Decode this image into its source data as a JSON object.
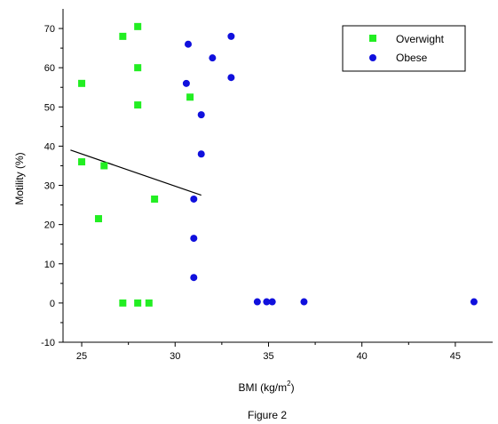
{
  "chart_data": {
    "type": "scatter",
    "title": "",
    "caption": "Figure 2",
    "xlabel": "BMI (kg/m",
    "xlabel_superscript": "2",
    "xlabel_suffix": ")",
    "ylabel": "Motility (%)",
    "xlim": [
      24,
      47
    ],
    "ylim": [
      -10,
      75
    ],
    "xticks": [
      25,
      30,
      35,
      40,
      45
    ],
    "yticks": [
      -10,
      0,
      10,
      20,
      30,
      40,
      50,
      60,
      70
    ],
    "grid": false,
    "legend_position": "top-right",
    "series": [
      {
        "name": "Overwight",
        "marker": "square",
        "color": "#22ee22",
        "points": [
          [
            25.0,
            56
          ],
          [
            27.2,
            68
          ],
          [
            28.0,
            70.5
          ],
          [
            28.0,
            60
          ],
          [
            28.0,
            50.5
          ],
          [
            30.8,
            52.5
          ],
          [
            25.0,
            36
          ],
          [
            26.2,
            35
          ],
          [
            28.9,
            26.5
          ],
          [
            25.9,
            21.5
          ],
          [
            27.2,
            0
          ],
          [
            28.0,
            0
          ],
          [
            28.6,
            0
          ]
        ]
      },
      {
        "name": "Obese",
        "marker": "circle",
        "color": "#1010dd",
        "points": [
          [
            30.6,
            56
          ],
          [
            30.7,
            66
          ],
          [
            32.0,
            62.5
          ],
          [
            33.0,
            68
          ],
          [
            33.0,
            57.5
          ],
          [
            31.4,
            48
          ],
          [
            31.4,
            38
          ],
          [
            31.0,
            26.5
          ],
          [
            31.0,
            16.5
          ],
          [
            31.0,
            6.5
          ],
          [
            34.4,
            0.3
          ],
          [
            34.9,
            0.3
          ],
          [
            35.2,
            0.3
          ],
          [
            36.9,
            0.3
          ],
          [
            46.0,
            0.3
          ]
        ]
      }
    ],
    "trendline": {
      "color": "#000000",
      "points": [
        [
          24.4,
          39
        ],
        [
          31.4,
          27.5
        ]
      ]
    }
  }
}
